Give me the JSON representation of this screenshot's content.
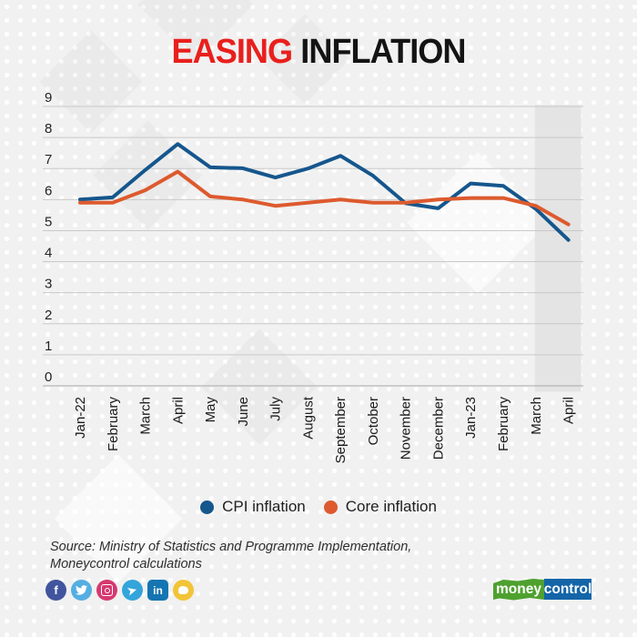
{
  "title": {
    "highlight": "EASING",
    "rest": " INFLATION",
    "highlight_color": "#e8201d"
  },
  "chart_data": {
    "type": "line",
    "categories": [
      "Jan-22",
      "February",
      "March",
      "April",
      "May",
      "June",
      "July",
      "August",
      "September",
      "October",
      "November",
      "December",
      "Jan-23",
      "February",
      "March",
      "April"
    ],
    "series": [
      {
        "name": "CPI inflation",
        "color": "#15568d",
        "values": [
          6.0,
          6.07,
          6.95,
          7.79,
          7.04,
          7.01,
          6.71,
          7.0,
          7.41,
          6.77,
          5.88,
          5.72,
          6.52,
          6.44,
          5.7,
          4.7
        ]
      },
      {
        "name": "Core inflation",
        "color": "#dd5a2e",
        "values": [
          5.9,
          5.9,
          6.3,
          6.9,
          6.1,
          6.0,
          5.8,
          5.9,
          6.0,
          5.9,
          5.9,
          6.0,
          6.05,
          6.05,
          5.8,
          5.2
        ]
      }
    ],
    "title": "EASING INFLATION",
    "xlabel": "",
    "ylabel": "",
    "ylim": [
      0,
      9
    ],
    "ytick_step": 1,
    "grid": true,
    "legend_position": "bottom",
    "highlight_band": {
      "from_index": 14,
      "to_index": 15,
      "color": "#e4e4e4",
      "meaning": "highlights March and April 2023"
    },
    "gridline_color": "#c9c9c9",
    "axis_label_color": "#1a1a1a"
  },
  "legend": {
    "items": [
      {
        "label": "CPI inflation",
        "color": "#15568d"
      },
      {
        "label": "Core inflation",
        "color": "#dd5a2e"
      }
    ]
  },
  "source": {
    "line1": "Source: Ministry of Statistics and Programme Implementation,",
    "line2": "Moneycontrol calculations"
  },
  "social": {
    "facebook": {
      "glyph": "f",
      "color": "#41549e"
    },
    "twitter": {
      "glyph": "bird",
      "color": "#55aee2"
    },
    "instagram": {
      "glyph": "camera",
      "color": "#d6386f"
    },
    "telegram": {
      "glyph": "paper-plane",
      "color": "#33a5da"
    },
    "linkedin": {
      "glyph": "in",
      "color": "#1475b2"
    },
    "koo": {
      "glyph": "bird",
      "color": "#f2c438"
    }
  },
  "branding": {
    "logo_part1": "money",
    "logo_part2": "control",
    "part1_bg": "#4ea12f",
    "part2_bg": "#1465a8"
  }
}
